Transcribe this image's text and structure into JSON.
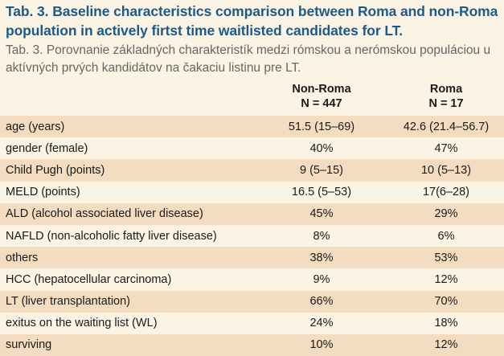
{
  "title": "Tab. 3. Baseline characteristics comparison between Roma and non-Roma population in actively firtst time waitlisted candidates for LT.",
  "subtitle": "Tab. 3. Porovnanie základných charakteristík medzi rómskou a nerómskou populáciou u aktívných prvých kandidátov na čakaciu listinu pre LT.",
  "columns": [
    {
      "name": "Non-Roma",
      "n": "N = 447"
    },
    {
      "name": "Roma",
      "n": "N = 17"
    }
  ],
  "rows": [
    {
      "label": "age (years)",
      "v1": "51.5 (15–69)",
      "v2": "42.6 (21.4–56.7)"
    },
    {
      "label": "gender (female)",
      "v1": "40%",
      "v2": "47%"
    },
    {
      "label": "Child Pugh (points)",
      "v1": "9 (5–15)",
      "v2": "10 (5–13)"
    },
    {
      "label": "MELD (points)",
      "v1": "16.5 (5–53)",
      "v2": "17(6–28)"
    },
    {
      "label": "ALD (alcohol associated liver disease)",
      "v1": "45%",
      "v2": "29%"
    },
    {
      "label": "NAFLD (non-alcoholic fatty liver disease)",
      "v1": "8%",
      "v2": "6%"
    },
    {
      "label": "others",
      "v1": "38%",
      "v2": "53%"
    },
    {
      "label": "HCC (hepatocellular carcinoma)",
      "v1": "9%",
      "v2": "12%"
    },
    {
      "label": "LT (liver transplantation)",
      "v1": "66%",
      "v2": "70%"
    },
    {
      "label": "exitus on the waiting list (WL)",
      "v1": "24%",
      "v2": "18%"
    },
    {
      "label": "surviving",
      "v1": "10%",
      "v2": "12%"
    }
  ]
}
